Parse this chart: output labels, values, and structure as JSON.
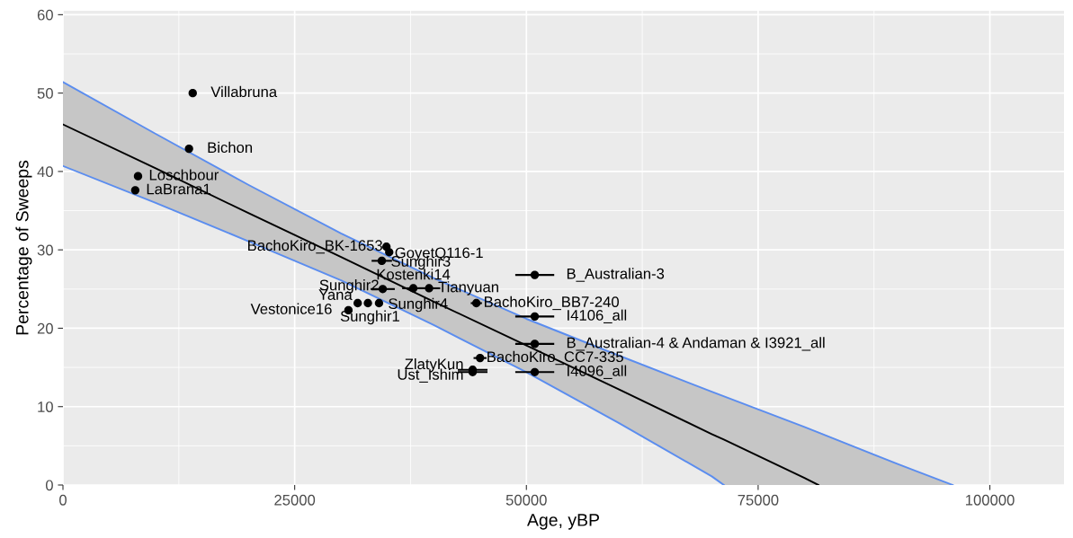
{
  "chart_data": {
    "type": "scatter",
    "xlabel": "Age, yBP",
    "ylabel": "Percentage of Sweeps",
    "xlim": [
      0,
      108000
    ],
    "ylim": [
      0,
      60.5
    ],
    "xticks": [
      0,
      25000,
      50000,
      75000,
      100000
    ],
    "yticks": [
      0,
      10,
      20,
      30,
      40,
      50,
      60
    ],
    "grid": true,
    "marker": "circle",
    "series": [
      {
        "type": "line",
        "color": "#5b8def",
        "marker": "none",
        "x": [
          0,
          10000,
          20000,
          30000,
          40000,
          50000,
          60000,
          70000,
          71300
        ],
        "values": [
          40.7,
          36.0,
          31.1,
          26.1,
          20.4,
          14.4,
          7.9,
          1.1,
          0
        ]
      },
      {
        "type": "line",
        "color": "#5b8def",
        "marker": "none",
        "x": [
          0,
          10000,
          20000,
          30000,
          40000,
          50000,
          60000,
          70000,
          80000,
          90000,
          96000
        ],
        "values": [
          51.4,
          44.8,
          38.3,
          32.1,
          26.4,
          21.2,
          16.5,
          11.9,
          7.4,
          2.7,
          0
        ]
      },
      {
        "type": "line",
        "color": "#000000",
        "marker": "none",
        "x": [
          0,
          10000,
          20000,
          30000,
          40000,
          50000,
          60000,
          70000,
          71300,
          80000,
          81500,
          90000,
          96000
        ],
        "values": [
          46.0,
          40.4,
          34.7,
          29.1,
          23.4,
          17.8,
          12.2,
          6.5,
          5.8,
          0.9,
          0,
          null,
          null
        ],
        "lower": [
          40.7,
          36.0,
          31.1,
          26.1,
          20.4,
          14.4,
          7.9,
          1.1,
          0,
          0,
          0,
          0,
          0
        ],
        "upper": [
          51.4,
          44.8,
          38.3,
          32.1,
          26.4,
          21.2,
          16.5,
          11.9,
          11.3,
          7.4,
          6.8,
          2.7,
          0
        ]
      },
      {
        "color": "#000000",
        "x": [
          14000,
          13600,
          8100,
          7800,
          34900,
          35200,
          34400,
          37800,
          34500,
          39500,
          31800,
          32900,
          34100,
          30800,
          44600,
          50900,
          50900,
          50900,
          45000,
          44200,
          44200,
          50900
        ],
        "values": [
          50.0,
          42.9,
          39.4,
          37.6,
          30.4,
          29.7,
          28.6,
          25.1,
          25.0,
          25.1,
          23.2,
          23.2,
          23.2,
          22.3,
          23.2,
          26.8,
          21.5,
          18.0,
          16.2,
          14.7,
          14.4,
          14.4
        ],
        "xerrors": [
          null,
          null,
          null,
          null,
          null,
          null,
          1000,
          1100,
          1200,
          1100,
          null,
          null,
          null,
          null,
          500,
          2000,
          2000,
          2000,
          600,
          1500,
          1500,
          2000
        ]
      }
    ],
    "annotations": [
      {
        "text": "Villabruna",
        "x": 14000,
        "y": 50.0
      },
      {
        "text": "Bichon",
        "x": 13600,
        "y": 42.9
      },
      {
        "text": "Loschbour",
        "x": 8100,
        "y": 39.4
      },
      {
        "text": "LaBrana1",
        "x": 7800,
        "y": 37.6
      },
      {
        "text": "BachoKiro_BK-1653",
        "x": 34900,
        "y": 30.4
      },
      {
        "text": "GoyetQ116-1",
        "x": 35200,
        "y": 29.7
      },
      {
        "text": "Sunghir3",
        "x": 34400,
        "y": 28.6
      },
      {
        "text": "Kostenki14",
        "x": 37800,
        "y": 25.1
      },
      {
        "text": "Sunghir2",
        "x": 34500,
        "y": 25.0
      },
      {
        "text": "Tianyuan",
        "x": 39500,
        "y": 25.1
      },
      {
        "text": "Yana",
        "x": 31800,
        "y": 23.2
      },
      {
        "text": "Sunghir4",
        "x": 34100,
        "y": 23.2
      },
      {
        "text": "Vestonice16",
        "x": 30800,
        "y": 22.3
      },
      {
        "text": "Sunghir1",
        "x": 30800,
        "y": 22.3
      },
      {
        "text": "BachoKiro_BB7-240",
        "x": 44600,
        "y": 23.2
      },
      {
        "text": "B_Australian-3",
        "x": 50900,
        "y": 26.8
      },
      {
        "text": "I4106_all",
        "x": 50900,
        "y": 21.5
      },
      {
        "text": "B_Australian-4 & Andaman & I3921_all",
        "x": 50900,
        "y": 18.0
      },
      {
        "text": "BachoKiro_CC7-335",
        "x": 45000,
        "y": 16.2
      },
      {
        "text": "ZlatyKun",
        "x": 44200,
        "y": 14.7
      },
      {
        "text": "Ust_Ishim",
        "x": 44200,
        "y": 14.4
      },
      {
        "text": "I4096_all",
        "x": 50900,
        "y": 14.4
      }
    ]
  }
}
